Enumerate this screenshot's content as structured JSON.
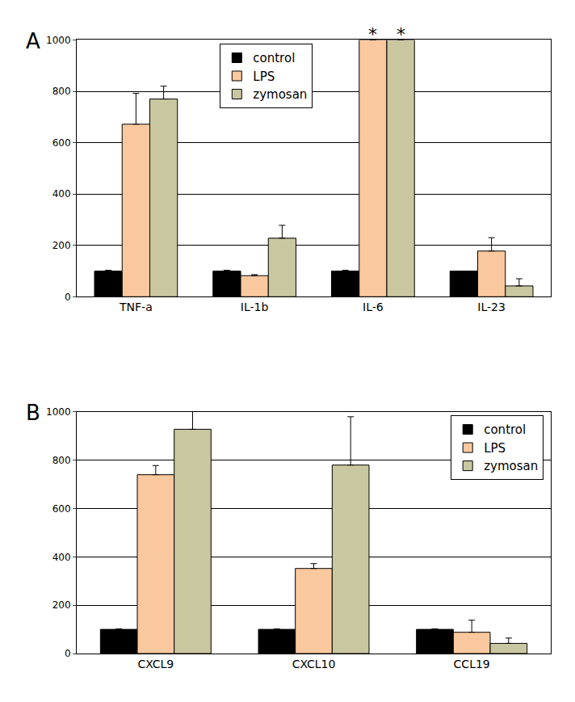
{
  "chart_data": [
    {
      "type": "bar",
      "title": "A",
      "categories": [
        "TNF-a",
        "IL-1b",
        "IL-6",
        "IL-23"
      ],
      "series": [
        {
          "name": "control",
          "color": "#000000",
          "values": [
            100,
            100,
            100,
            100
          ],
          "errors": [
            3,
            3,
            3,
            0
          ]
        },
        {
          "name": "LPS",
          "color": "#fac89e",
          "values": [
            672,
            82,
            1000,
            178
          ],
          "errors": [
            120,
            4,
            null,
            52
          ]
        },
        {
          "name": "zymosan",
          "color": "#c9c7a0",
          "values": [
            770,
            228,
            1000,
            42
          ],
          "errors": [
            50,
            50,
            null,
            28
          ]
        }
      ],
      "annotations": [
        {
          "text": "*",
          "category": "IL-6",
          "series": "LPS",
          "y": 1000
        },
        {
          "text": "*",
          "category": "IL-6",
          "series": "zymosan",
          "y": 1000
        }
      ],
      "ylim": [
        0,
        1000
      ],
      "yticks": [
        0,
        200,
        400,
        600,
        800,
        1000
      ],
      "grid": true,
      "legend": "top"
    },
    {
      "type": "bar",
      "title": "B",
      "categories": [
        "CXCL9",
        "CXCL10",
        "CCL19"
      ],
      "series": [
        {
          "name": "control",
          "color": "#000000",
          "values": [
            100,
            100,
            100
          ],
          "errors": [
            2,
            2,
            2
          ]
        },
        {
          "name": "LPS",
          "color": "#fac89e",
          "values": [
            740,
            352,
            88
          ],
          "errors": [
            38,
            20,
            50
          ]
        },
        {
          "name": "zymosan",
          "color": "#c9c7a0",
          "values": [
            928,
            780,
            42
          ],
          "errors": [
            80,
            200,
            22
          ]
        }
      ],
      "ylim": [
        0,
        1000
      ],
      "yticks": [
        0,
        200,
        400,
        600,
        800,
        1000
      ],
      "grid": true,
      "legend": "top-right"
    }
  ]
}
